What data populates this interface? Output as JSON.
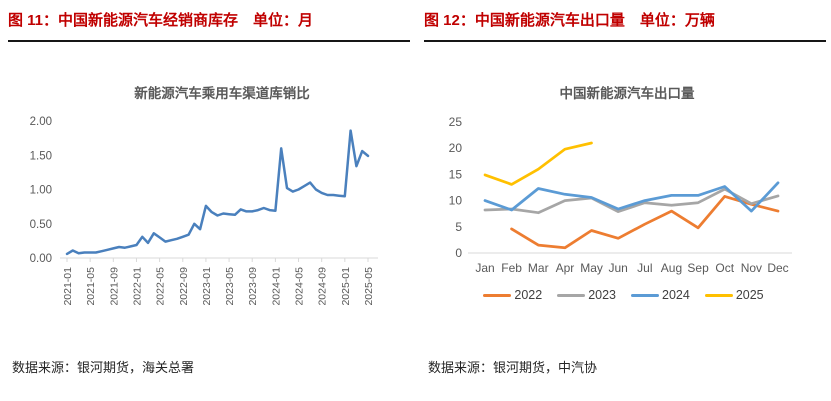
{
  "panels": [
    {
      "title": "图 11：中国新能源汽车经销商库存　单位：月",
      "source": "数据来源：银河期货，海关总署"
    },
    {
      "title": "图 12：中国新能源汽车出口量　单位：万辆",
      "source": "数据来源：银河期货，中汽协"
    }
  ],
  "colors": {
    "panel_title_red": "#c00000",
    "axis_text_gray": "#595959",
    "axis_line_gray": "#d9d9d9",
    "inventory_line_blue": "#4a80bd",
    "series_2022_orange": "#ed7d31",
    "series_2023_gray": "#a6a6a6",
    "series_2024_blue": "#5b9bd5",
    "series_2025_yellow": "#ffc000"
  },
  "chart_data": [
    {
      "type": "line",
      "title": "新能源汽车乘用车渠道库销比",
      "x": [
        "2021-01",
        "2021-02",
        "2021-03",
        "2021-04",
        "2021-05",
        "2021-06",
        "2021-07",
        "2021-08",
        "2021-09",
        "2021-10",
        "2021-11",
        "2021-12",
        "2022-01",
        "2022-02",
        "2022-03",
        "2022-04",
        "2022-05",
        "2022-06",
        "2022-07",
        "2022-08",
        "2022-09",
        "2022-10",
        "2022-11",
        "2022-12",
        "2023-01",
        "2023-02",
        "2023-03",
        "2023-04",
        "2023-05",
        "2023-06",
        "2023-07",
        "2023-08",
        "2023-09",
        "2023-10",
        "2023-11",
        "2023-12",
        "2024-01",
        "2024-02",
        "2024-03",
        "2024-04",
        "2024-05",
        "2024-06",
        "2024-07",
        "2024-08",
        "2024-09",
        "2024-10",
        "2024-11",
        "2024-12",
        "2025-01",
        "2025-02",
        "2025-03",
        "2025-04",
        "2025-05"
      ],
      "xtick_every": 4,
      "xticks_shown": [
        "2021-01",
        "2021-05",
        "2021-09",
        "2022-01",
        "2022-05",
        "2022-09",
        "2023-01",
        "2023-05",
        "2023-09",
        "2024-01",
        "2024-05",
        "2024-09",
        "2025-01",
        "2025-05"
      ],
      "series": [
        {
          "name": "渠道库销比",
          "color": "#4a80bd",
          "values": [
            0.06,
            0.11,
            0.07,
            0.08,
            0.08,
            0.08,
            0.1,
            0.12,
            0.14,
            0.16,
            0.15,
            0.17,
            0.19,
            0.31,
            0.22,
            0.36,
            0.3,
            0.24,
            0.26,
            0.28,
            0.31,
            0.34,
            0.5,
            0.42,
            0.76,
            0.67,
            0.62,
            0.65,
            0.64,
            0.63,
            0.71,
            0.68,
            0.68,
            0.7,
            0.73,
            0.7,
            0.69,
            1.6,
            1.02,
            0.97,
            1.0,
            1.05,
            1.1,
            1.0,
            0.95,
            0.92,
            0.92,
            0.91,
            0.9,
            1.86,
            1.34,
            1.56,
            1.49
          ]
        }
      ],
      "ylim": [
        0,
        2
      ],
      "yticks": [
        "0.00",
        "0.50",
        "1.00",
        "1.50",
        "2.00"
      ],
      "xlabel": "",
      "ylabel": "",
      "grid": false,
      "legend": false
    },
    {
      "type": "line",
      "title": "中国新能源汽车出口量",
      "categories": [
        "Jan",
        "Feb",
        "Mar",
        "Apr",
        "May",
        "Jun",
        "Jul",
        "Aug",
        "Sep",
        "Oct",
        "Nov",
        "Dec"
      ],
      "series": [
        {
          "name": "2022",
          "color": "#ed7d31",
          "values": [
            null,
            4.6,
            1.5,
            1.0,
            4.3,
            2.8,
            5.5,
            8.0,
            4.8,
            10.8,
            9.3,
            8.0
          ]
        },
        {
          "name": "2023",
          "color": "#a6a6a6",
          "values": [
            8.2,
            8.4,
            7.7,
            10.0,
            10.5,
            7.9,
            9.6,
            9.1,
            9.6,
            12.2,
            9.4,
            10.9
          ]
        },
        {
          "name": "2024",
          "color": "#5b9bd5",
          "values": [
            10.0,
            8.2,
            12.3,
            11.2,
            10.6,
            8.4,
            10.0,
            11.0,
            11.0,
            12.7,
            8.0,
            13.4
          ]
        },
        {
          "name": "2025",
          "color": "#ffc000",
          "values": [
            14.9,
            13.1,
            16.0,
            19.8,
            21.0,
            null,
            null,
            null,
            null,
            null,
            null,
            null
          ]
        }
      ],
      "ylim": [
        0,
        25
      ],
      "yticks": [
        "0",
        "5",
        "10",
        "15",
        "20",
        "25"
      ],
      "xlabel": "",
      "ylabel": "",
      "grid": false,
      "legend": true,
      "legend_position": "bottom"
    }
  ]
}
